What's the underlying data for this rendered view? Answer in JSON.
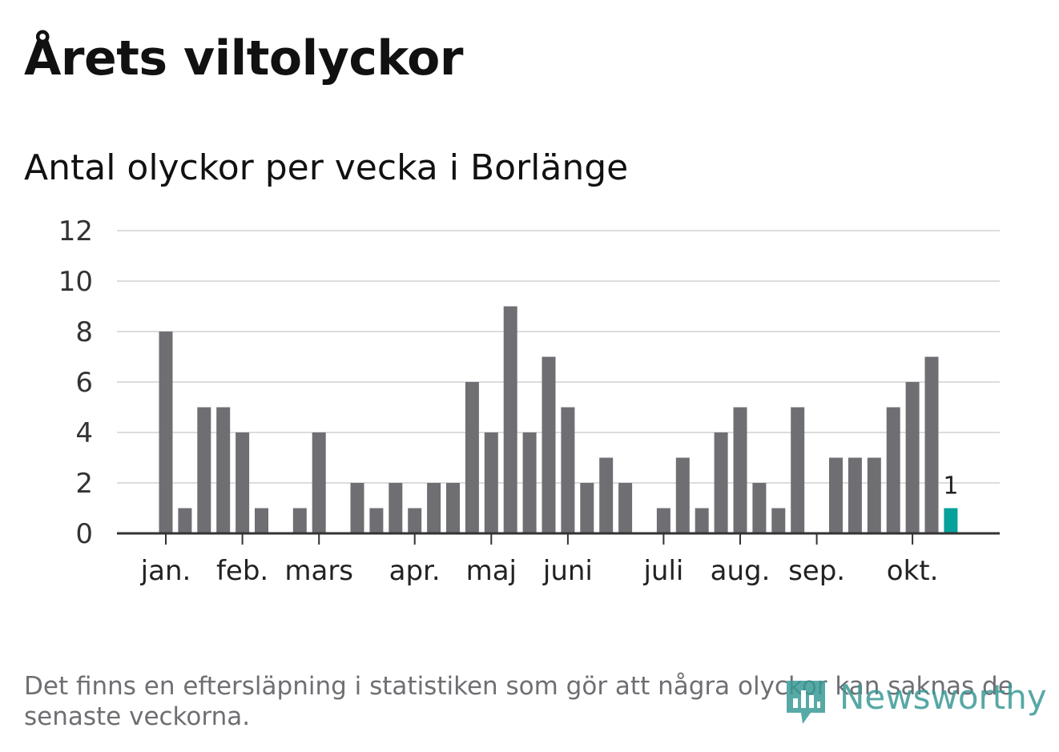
{
  "title": "Årets viltolyckor",
  "subtitle": "Antal olyckor per vecka i Borlänge",
  "footnote": "Det finns en eftersläpning i statistiken som gör att några olyckor kan saknas de senaste veckorna.",
  "brand": {
    "name": "Newsworthy",
    "icon": "newsworthy-logo-icon",
    "color": "#3a9a96"
  },
  "chart_data": {
    "type": "bar",
    "ylim": [
      0,
      12
    ],
    "y_ticks": [
      "0",
      "2",
      "4",
      "6",
      "8",
      "10",
      "12"
    ],
    "grid": true,
    "bar_color": "#6f6e73",
    "highlight_color": "#06a19a",
    "month_labels": [
      {
        "label": "jan.",
        "week": 1
      },
      {
        "label": "feb.",
        "week": 5
      },
      {
        "label": "mars",
        "week": 9
      },
      {
        "label": "apr.",
        "week": 14
      },
      {
        "label": "maj",
        "week": 18
      },
      {
        "label": "juni",
        "week": 22
      },
      {
        "label": "juli",
        "week": 27
      },
      {
        "label": "aug.",
        "week": 31
      },
      {
        "label": "sep.",
        "week": 35
      },
      {
        "label": "okt.",
        "week": 40
      }
    ],
    "weeks": [
      1,
      2,
      3,
      4,
      5,
      6,
      7,
      8,
      9,
      10,
      11,
      12,
      13,
      14,
      15,
      16,
      17,
      18,
      19,
      20,
      21,
      22,
      23,
      24,
      25,
      26,
      27,
      28,
      29,
      30,
      31,
      32,
      33,
      34,
      35,
      36,
      37,
      38,
      39,
      40,
      41,
      42
    ],
    "values": [
      8,
      1,
      5,
      5,
      4,
      1,
      0,
      1,
      4,
      0,
      2,
      1,
      2,
      1,
      2,
      2,
      6,
      4,
      9,
      4,
      7,
      5,
      2,
      3,
      2,
      0,
      1,
      3,
      1,
      4,
      5,
      2,
      1,
      5,
      0,
      3,
      3,
      3,
      5,
      6,
      7,
      1
    ],
    "highlight_index": 41,
    "highlight_label": "1"
  }
}
